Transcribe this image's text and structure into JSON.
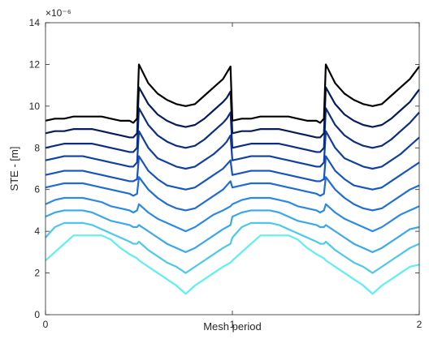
{
  "chart_data": {
    "type": "line",
    "xlabel": "Mesh period",
    "ylabel": "STE - [m]",
    "y_exponent_label": "×10⁻⁶",
    "xlim": [
      0,
      2
    ],
    "ylim": [
      0,
      14
    ],
    "x_ticks": [
      0,
      1,
      2
    ],
    "y_ticks": [
      0,
      2,
      4,
      6,
      8,
      10,
      12,
      14
    ],
    "grid": false,
    "box": true,
    "x": [
      0,
      0.05,
      0.1,
      0.15,
      0.2,
      0.25,
      0.3,
      0.35,
      0.4,
      0.45,
      0.47,
      0.49,
      0.5,
      0.55,
      0.6,
      0.65,
      0.7,
      0.75,
      0.8,
      0.85,
      0.9,
      0.95,
      0.97,
      0.99,
      1.0,
      1.05,
      1.1,
      1.15,
      1.2,
      1.25,
      1.3,
      1.35,
      1.4,
      1.45,
      1.47,
      1.49,
      1.5,
      1.55,
      1.6,
      1.65,
      1.7,
      1.75,
      1.8,
      1.85,
      1.9,
      1.95,
      2.0
    ],
    "series": [
      {
        "color": "#5ef0f0",
        "values": [
          2.6,
          3.0,
          3.4,
          3.8,
          3.8,
          3.8,
          3.8,
          3.6,
          3.2,
          2.9,
          2.8,
          2.7,
          2.6,
          2.3,
          2.0,
          1.7,
          1.4,
          1.0,
          1.4,
          1.7,
          2.0,
          2.3,
          2.4,
          2.5,
          2.6,
          3.0,
          3.4,
          3.8,
          3.8,
          3.8,
          3.8,
          3.6,
          3.2,
          2.9,
          2.8,
          2.7,
          2.6,
          2.3,
          2.0,
          1.7,
          1.4,
          1.0,
          1.4,
          1.7,
          2.0,
          2.3,
          2.4
        ]
      },
      {
        "color": "#4cc8ee",
        "values": [
          3.7,
          4.2,
          4.4,
          4.4,
          4.4,
          4.3,
          4.1,
          3.9,
          3.7,
          3.5,
          3.4,
          3.4,
          3.5,
          3.1,
          2.8,
          2.5,
          2.3,
          2.0,
          2.3,
          2.6,
          2.9,
          3.2,
          3.3,
          3.4,
          3.7,
          4.2,
          4.4,
          4.4,
          4.4,
          4.3,
          4.1,
          3.9,
          3.7,
          3.5,
          3.4,
          3.4,
          3.5,
          3.1,
          2.8,
          2.5,
          2.3,
          2.0,
          2.3,
          2.6,
          2.9,
          3.2,
          3.4
        ]
      },
      {
        "color": "#3aa8ec",
        "values": [
          4.7,
          4.9,
          5.0,
          5.0,
          5.0,
          4.9,
          4.7,
          4.5,
          4.4,
          4.3,
          4.2,
          4.2,
          4.3,
          4.0,
          3.7,
          3.4,
          3.2,
          3.0,
          3.2,
          3.5,
          3.8,
          4.1,
          4.2,
          4.3,
          4.7,
          4.9,
          5.0,
          5.0,
          5.0,
          4.9,
          4.7,
          4.5,
          4.4,
          4.3,
          4.2,
          4.2,
          4.3,
          4.0,
          3.7,
          3.4,
          3.2,
          3.0,
          3.2,
          3.5,
          3.8,
          4.1,
          4.2
        ]
      },
      {
        "color": "#2c8ae4",
        "values": [
          5.3,
          5.5,
          5.6,
          5.6,
          5.6,
          5.5,
          5.4,
          5.2,
          5.1,
          5.0,
          4.9,
          5.0,
          5.3,
          4.9,
          4.6,
          4.4,
          4.2,
          4.0,
          4.2,
          4.5,
          4.8,
          5.0,
          5.1,
          5.2,
          5.3,
          5.5,
          5.6,
          5.6,
          5.6,
          5.5,
          5.4,
          5.2,
          5.1,
          5.0,
          4.9,
          5.0,
          5.3,
          4.9,
          4.6,
          4.4,
          4.2,
          4.0,
          4.2,
          4.5,
          4.8,
          5.0,
          5.2
        ]
      },
      {
        "color": "#206cd4",
        "values": [
          6.1,
          6.2,
          6.3,
          6.3,
          6.3,
          6.2,
          6.1,
          6.0,
          5.9,
          5.8,
          5.7,
          5.8,
          6.6,
          6.0,
          5.6,
          5.3,
          5.1,
          5.0,
          5.1,
          5.4,
          5.7,
          6.0,
          6.2,
          6.4,
          6.1,
          6.2,
          6.3,
          6.3,
          6.3,
          6.2,
          6.1,
          6.0,
          5.9,
          5.8,
          5.7,
          5.8,
          6.6,
          6.0,
          5.6,
          5.3,
          5.1,
          5.0,
          5.1,
          5.4,
          5.7,
          6.0,
          6.2
        ]
      },
      {
        "color": "#1854bd",
        "values": [
          6.7,
          6.8,
          6.9,
          6.9,
          6.9,
          6.8,
          6.7,
          6.6,
          6.5,
          6.4,
          6.4,
          6.5,
          7.6,
          6.9,
          6.5,
          6.2,
          6.1,
          6.0,
          6.1,
          6.4,
          6.7,
          7.0,
          7.2,
          7.4,
          6.7,
          6.8,
          6.9,
          6.9,
          6.9,
          6.8,
          6.7,
          6.6,
          6.5,
          6.4,
          6.4,
          6.5,
          7.6,
          6.9,
          6.5,
          6.2,
          6.1,
          6.0,
          6.1,
          6.4,
          6.7,
          7.0,
          7.3
        ]
      },
      {
        "color": "#1240a0",
        "values": [
          7.4,
          7.5,
          7.6,
          7.6,
          7.6,
          7.5,
          7.4,
          7.3,
          7.2,
          7.1,
          7.1,
          7.3,
          8.8,
          8.0,
          7.5,
          7.3,
          7.1,
          7.0,
          7.1,
          7.4,
          7.7,
          8.1,
          8.3,
          8.6,
          7.4,
          7.5,
          7.6,
          7.6,
          7.6,
          7.5,
          7.4,
          7.3,
          7.2,
          7.1,
          7.1,
          7.3,
          8.8,
          8.0,
          7.5,
          7.3,
          7.1,
          7.0,
          7.1,
          7.4,
          7.7,
          8.1,
          8.5
        ]
      },
      {
        "color": "#0c2d80",
        "values": [
          8.0,
          8.1,
          8.2,
          8.2,
          8.2,
          8.2,
          8.1,
          8.0,
          7.9,
          7.8,
          7.8,
          8.0,
          9.9,
          9.1,
          8.6,
          8.3,
          8.1,
          8.0,
          8.1,
          8.4,
          8.8,
          9.2,
          9.4,
          9.7,
          8.0,
          8.1,
          8.2,
          8.2,
          8.2,
          8.2,
          8.1,
          8.0,
          7.9,
          7.8,
          7.8,
          8.0,
          9.9,
          9.1,
          8.6,
          8.3,
          8.1,
          8.0,
          8.1,
          8.4,
          8.8,
          9.2,
          9.7
        ]
      },
      {
        "color": "#061c5a",
        "values": [
          8.7,
          8.8,
          8.8,
          8.9,
          8.9,
          8.9,
          8.8,
          8.7,
          8.6,
          8.5,
          8.5,
          8.7,
          10.9,
          10.1,
          9.6,
          9.3,
          9.1,
          9.0,
          9.1,
          9.4,
          9.8,
          10.2,
          10.4,
          10.7,
          8.7,
          8.8,
          8.8,
          8.9,
          8.9,
          8.9,
          8.8,
          8.7,
          8.6,
          8.5,
          8.5,
          8.7,
          10.9,
          10.1,
          9.6,
          9.3,
          9.1,
          9.0,
          9.1,
          9.4,
          9.8,
          10.2,
          10.8
        ]
      },
      {
        "color": "#000000",
        "values": [
          9.3,
          9.4,
          9.4,
          9.5,
          9.5,
          9.5,
          9.5,
          9.4,
          9.3,
          9.3,
          9.2,
          9.4,
          12.0,
          11.1,
          10.6,
          10.3,
          10.1,
          10.0,
          10.1,
          10.5,
          10.9,
          11.3,
          11.6,
          11.9,
          9.3,
          9.4,
          9.4,
          9.5,
          9.5,
          9.5,
          9.5,
          9.4,
          9.3,
          9.3,
          9.2,
          9.4,
          12.0,
          11.1,
          10.6,
          10.3,
          10.1,
          10.0,
          10.1,
          10.5,
          10.9,
          11.3,
          11.9
        ]
      }
    ]
  }
}
